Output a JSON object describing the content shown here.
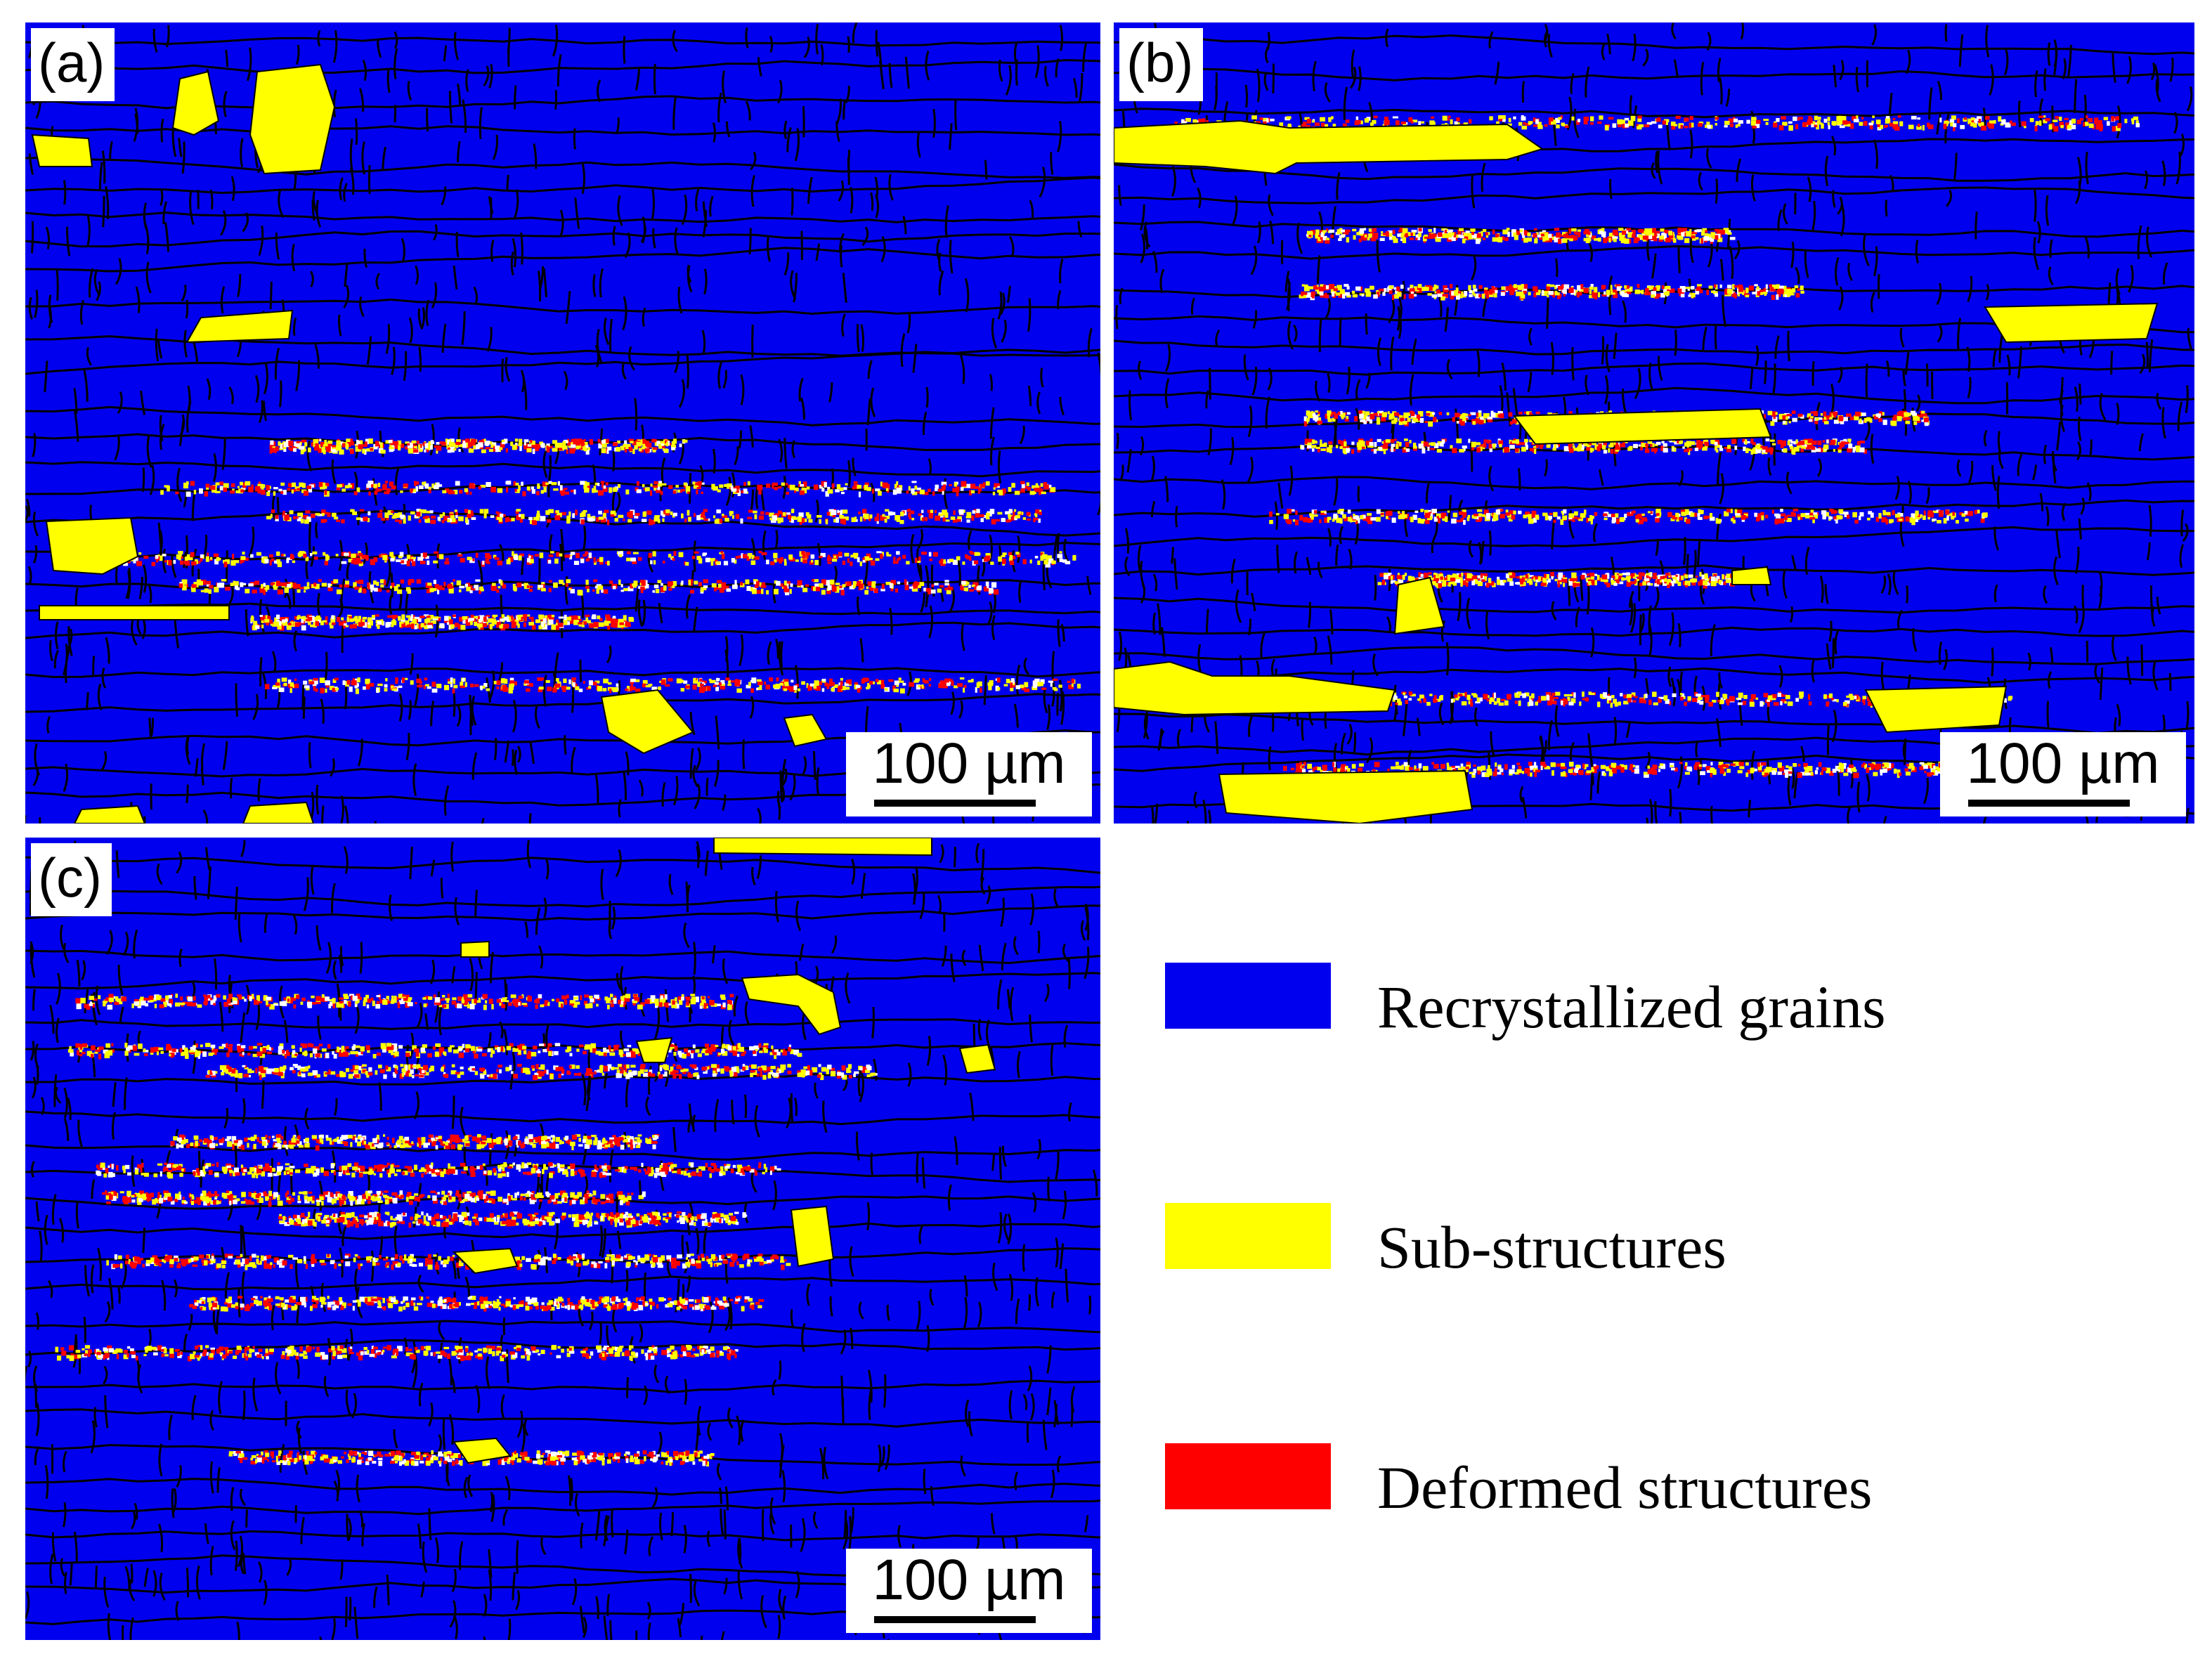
{
  "panels": [
    {
      "label": "(a)",
      "scale_bar": "100 µm"
    },
    {
      "label": "(b)",
      "scale_bar": "100 µm"
    },
    {
      "label": "(c)",
      "scale_bar": "100 µm"
    }
  ],
  "legend": [
    {
      "label": "Recrystallized grains",
      "color": "#0000ee"
    },
    {
      "label": "Sub-structures",
      "color": "#ffff00"
    },
    {
      "label": "Deformed structures",
      "color": "#ff0000"
    }
  ]
}
